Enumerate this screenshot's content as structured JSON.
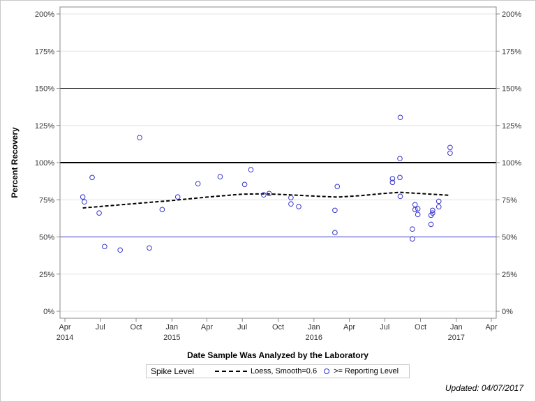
{
  "chart_data": {
    "type": "scatter",
    "xlabel": "Date Sample Was Analyzed by the Laboratory",
    "ylabel": "Percent Recovery",
    "xlim": [
      "2014-04-01",
      "2017-04-01"
    ],
    "ylim": [
      0,
      200
    ],
    "grid": true,
    "x_ticks": [
      {
        "date": "2014-04-01",
        "label": "Apr",
        "year": "2014"
      },
      {
        "date": "2014-07-01",
        "label": "Jul",
        "year": ""
      },
      {
        "date": "2014-10-01",
        "label": "Oct",
        "year": ""
      },
      {
        "date": "2015-01-01",
        "label": "Jan",
        "year": "2015"
      },
      {
        "date": "2015-04-01",
        "label": "Apr",
        "year": ""
      },
      {
        "date": "2015-07-01",
        "label": "Jul",
        "year": ""
      },
      {
        "date": "2015-10-01",
        "label": "Oct",
        "year": ""
      },
      {
        "date": "2016-01-01",
        "label": "Jan",
        "year": "2016"
      },
      {
        "date": "2016-04-01",
        "label": "Apr",
        "year": ""
      },
      {
        "date": "2016-07-01",
        "label": "Jul",
        "year": ""
      },
      {
        "date": "2016-10-01",
        "label": "Oct",
        "year": ""
      },
      {
        "date": "2017-01-01",
        "label": "Jan",
        "year": "2017"
      },
      {
        "date": "2017-04-01",
        "label": "Apr",
        "year": ""
      }
    ],
    "y_ticks": [
      {
        "value": 0,
        "label": "0%"
      },
      {
        "value": 25,
        "label": "25%"
      },
      {
        "value": 50,
        "label": "50%"
      },
      {
        "value": 75,
        "label": "75%"
      },
      {
        "value": 100,
        "label": "100%"
      },
      {
        "value": 125,
        "label": "125%"
      },
      {
        "value": 150,
        "label": "150%"
      },
      {
        "value": 175,
        "label": "175%"
      },
      {
        "value": 200,
        "label": "200%"
      }
    ],
    "reference_lines": [
      {
        "value": 100,
        "color": "#000000",
        "style": "thick"
      },
      {
        "value": 150,
        "color": "#000000",
        "style": "thin"
      },
      {
        "value": 50,
        "color": "#3333cc",
        "style": "thin"
      }
    ],
    "series": [
      {
        "name": ">= Reporting Level",
        "type": "scatter",
        "color": "#3333cc",
        "points": [
          [
            "2014-05-17",
            76.9
          ],
          [
            "2014-05-21",
            73.6
          ],
          [
            "2014-06-10",
            90.0
          ],
          [
            "2014-06-28",
            66.1
          ],
          [
            "2014-07-12",
            43.5
          ],
          [
            "2014-08-21",
            41.2
          ],
          [
            "2014-10-10",
            116.8
          ],
          [
            "2014-11-04",
            42.6
          ],
          [
            "2014-12-07",
            68.4
          ],
          [
            "2015-01-16",
            76.9
          ],
          [
            "2015-03-09",
            85.8
          ],
          [
            "2015-05-05",
            90.5
          ],
          [
            "2015-07-07",
            85.3
          ],
          [
            "2015-07-23",
            95.2
          ],
          [
            "2015-08-25",
            78.3
          ],
          [
            "2015-09-08",
            79.2
          ],
          [
            "2015-11-03",
            76.4
          ],
          [
            "2015-11-03",
            72.2
          ],
          [
            "2015-11-23",
            70.4
          ],
          [
            "2016-02-24",
            67.9
          ],
          [
            "2016-02-24",
            52.9
          ],
          [
            "2016-03-01",
            83.9
          ],
          [
            "2016-07-21",
            89.2
          ],
          [
            "2016-07-21",
            86.7
          ],
          [
            "2016-08-09",
            90.0
          ],
          [
            "2016-08-09",
            102.7
          ],
          [
            "2016-08-10",
            130.4
          ],
          [
            "2016-08-10",
            77.3
          ],
          [
            "2016-09-10",
            55.3
          ],
          [
            "2016-09-10",
            48.7
          ],
          [
            "2016-09-17",
            71.7
          ],
          [
            "2016-09-17",
            68.4
          ],
          [
            "2016-09-24",
            69.0
          ],
          [
            "2016-09-24",
            65.1
          ],
          [
            "2016-10-28",
            58.5
          ],
          [
            "2016-10-28",
            64.6
          ],
          [
            "2016-11-01",
            67.9
          ],
          [
            "2016-11-01",
            66.1
          ],
          [
            "2016-11-17",
            74.0
          ],
          [
            "2016-11-17",
            70.3
          ],
          [
            "2016-12-16",
            110.2
          ],
          [
            "2016-12-16",
            106.4
          ]
        ]
      },
      {
        "name": "Loess, Smooth=0.6",
        "type": "line",
        "color": "#000000",
        "style": "dashed",
        "points": [
          [
            "2014-05-17",
            69.5
          ],
          [
            "2014-10-01",
            72.5
          ],
          [
            "2015-01-01",
            74.5
          ],
          [
            "2015-04-01",
            76.8
          ],
          [
            "2015-07-01",
            78.8
          ],
          [
            "2015-09-01",
            79.0
          ],
          [
            "2015-11-01",
            78.3
          ],
          [
            "2016-01-01",
            77.5
          ],
          [
            "2016-03-01",
            76.8
          ],
          [
            "2016-05-01",
            77.8
          ],
          [
            "2016-07-01",
            79.3
          ],
          [
            "2016-08-10",
            80.0
          ],
          [
            "2016-10-01",
            79.2
          ],
          [
            "2016-12-16",
            78.0
          ]
        ]
      }
    ]
  },
  "legend": {
    "title": "Spike Level",
    "loess_label": "Loess, Smooth=0.6",
    "points_label": ">= Reporting Level"
  },
  "footer": {
    "updated": "Updated: 04/07/2017"
  }
}
